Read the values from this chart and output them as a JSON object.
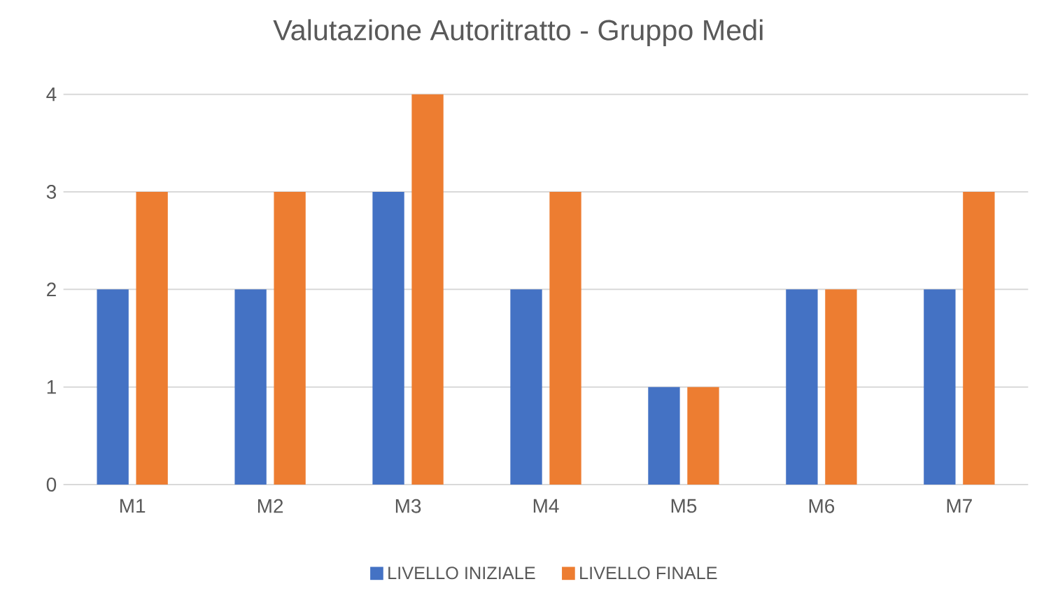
{
  "chart_data": {
    "type": "bar",
    "title": "Valutazione Autoritratto - Gruppo Medi",
    "categories": [
      "M1",
      "M2",
      "M3",
      "M4",
      "M5",
      "M6",
      "M7"
    ],
    "series": [
      {
        "name": "LIVELLO INIZIALE",
        "color": "#4472c4",
        "values": [
          2,
          2,
          3,
          2,
          1,
          2,
          2
        ]
      },
      {
        "name": "LIVELLO FINALE",
        "color": "#ed7d31",
        "values": [
          3,
          3,
          4,
          3,
          1,
          2,
          3
        ]
      }
    ],
    "ylim": [
      0,
      4
    ],
    "yticks": [
      0,
      1,
      2,
      3,
      4
    ],
    "grid": "y",
    "legend": "bottom"
  }
}
